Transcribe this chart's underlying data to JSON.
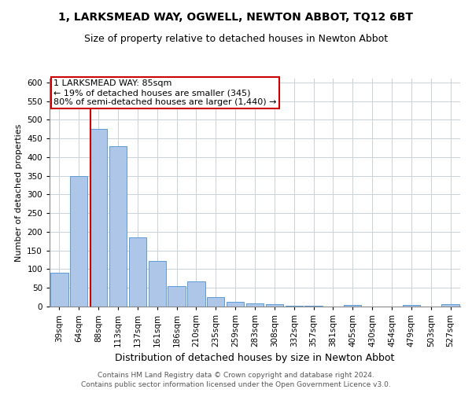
{
  "title": "1, LARKSMEAD WAY, OGWELL, NEWTON ABBOT, TQ12 6BT",
  "subtitle": "Size of property relative to detached houses in Newton Abbot",
  "xlabel": "Distribution of detached houses by size in Newton Abbot",
  "ylabel": "Number of detached properties",
  "categories": [
    "39sqm",
    "64sqm",
    "88sqm",
    "113sqm",
    "137sqm",
    "161sqm",
    "186sqm",
    "210sqm",
    "235sqm",
    "259sqm",
    "283sqm",
    "308sqm",
    "332sqm",
    "357sqm",
    "381sqm",
    "405sqm",
    "430sqm",
    "454sqm",
    "479sqm",
    "503sqm",
    "527sqm"
  ],
  "values": [
    90,
    350,
    475,
    430,
    185,
    123,
    55,
    67,
    25,
    13,
    8,
    6,
    3,
    2,
    1,
    5,
    1,
    0,
    5,
    0,
    7
  ],
  "bar_color": "#aec6e8",
  "bar_edge_color": "#5b9bd5",
  "vline_color": "#cc0000",
  "vline_index": 1.575,
  "annotation_lines": [
    "1 LARKSMEAD WAY: 85sqm",
    "← 19% of detached houses are smaller (345)",
    "80% of semi-detached houses are larger (1,440) →"
  ],
  "annotation_box_facecolor": "#ffffff",
  "annotation_box_edgecolor": "#cc0000",
  "ylim": [
    0,
    610
  ],
  "yticks": [
    0,
    50,
    100,
    150,
    200,
    250,
    300,
    350,
    400,
    450,
    500,
    550,
    600
  ],
  "background_color": "#ffffff",
  "grid_color": "#c8d0d8",
  "footer1": "Contains HM Land Registry data © Crown copyright and database right 2024.",
  "footer2": "Contains public sector information licensed under the Open Government Licence v3.0.",
  "title_fontsize": 10,
  "subtitle_fontsize": 9,
  "xlabel_fontsize": 9,
  "ylabel_fontsize": 8,
  "tick_fontsize": 7.5,
  "annotation_fontsize": 8,
  "footer_fontsize": 6.5
}
